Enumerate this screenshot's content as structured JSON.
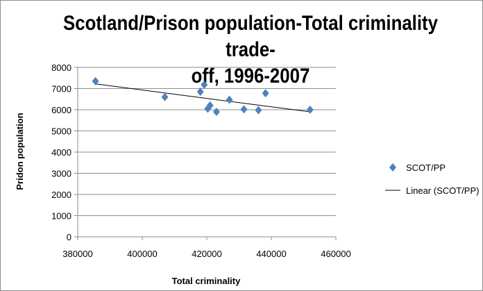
{
  "chart_data": {
    "type": "scatter",
    "title": "Scotland/Prison population-Total criminality trade-off, 1996-2007",
    "title_lines": [
      "Scotland/Prison population-Total criminality trade-",
      "off, 1996-2007"
    ],
    "xlabel": "Total criminality",
    "ylabel": "Pridon population",
    "xlim": [
      380000,
      460000
    ],
    "ylim": [
      0,
      8000
    ],
    "xticks": [
      380000,
      400000,
      420000,
      440000,
      460000
    ],
    "yticks": [
      0,
      1000,
      2000,
      3000,
      4000,
      5000,
      6000,
      7000,
      8000
    ],
    "grid": "horizontal",
    "legend_position": "right",
    "series": [
      {
        "name": "SCOT/PP",
        "kind": "scatter",
        "color": "#4f81bd",
        "marker": "diamond",
        "points": [
          [
            385500,
            7350
          ],
          [
            407000,
            6600
          ],
          [
            418000,
            6850
          ],
          [
            419200,
            7180
          ],
          [
            420300,
            6050
          ],
          [
            421000,
            6200
          ],
          [
            423000,
            5900
          ],
          [
            427000,
            6470
          ],
          [
            431500,
            6020
          ],
          [
            436000,
            5980
          ],
          [
            438200,
            6780
          ],
          [
            452000,
            6000
          ]
        ]
      },
      {
        "name": "Linear (SCOT/PP)",
        "kind": "trendline",
        "color": "#000000",
        "points": [
          [
            385500,
            7220
          ],
          [
            452000,
            5900
          ]
        ]
      }
    ]
  }
}
